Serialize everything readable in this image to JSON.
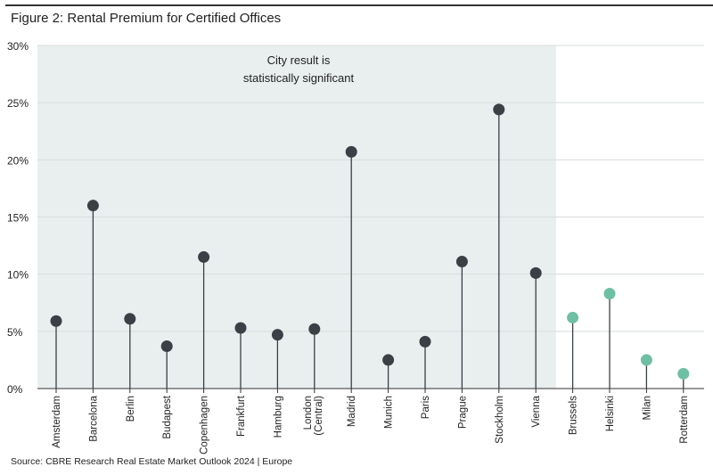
{
  "title": "Figure 2:  Rental Premium for Certified Offices",
  "footer": "Source: CBRE Research   Real Estate Market Outlook 2024 | Europe",
  "chart_data": {
    "type": "lollipop",
    "title": "Rental Premium for Certified Offices",
    "ylim": [
      0,
      30
    ],
    "yticks": [
      "0%",
      "5%",
      "10%",
      "15%",
      "20%",
      "25%",
      "30%"
    ],
    "ytick_values": [
      0,
      5,
      10,
      15,
      20,
      25,
      30
    ],
    "categories": [
      "Amsterdam",
      "Barcelona",
      "Berlin",
      "Budapest",
      "Copenhagen",
      "Frankfurt",
      "Hamburg",
      "London (Central)",
      "Madrid",
      "Munich",
      "Paris",
      "Prague",
      "Stockholm",
      "Vienna",
      "Brussels",
      "Helsinki",
      "Milan",
      "Rotterdam"
    ],
    "values": [
      5.9,
      16.0,
      6.1,
      3.7,
      11.5,
      5.3,
      4.7,
      5.2,
      20.7,
      2.5,
      4.1,
      11.1,
      24.4,
      10.1,
      6.2,
      8.3,
      2.5,
      1.3
    ],
    "significant": [
      true,
      true,
      true,
      true,
      true,
      true,
      true,
      true,
      true,
      true,
      true,
      true,
      true,
      true,
      false,
      false,
      false,
      false
    ],
    "annotation": [
      "City result is",
      "statistically significant"
    ],
    "colors": {
      "significant": "#3a4045",
      "not_significant": "#6fbfa4",
      "shade": "#e8efee",
      "grid": "#d8dcdc",
      "stem": "#3a4045"
    },
    "grid": true
  }
}
